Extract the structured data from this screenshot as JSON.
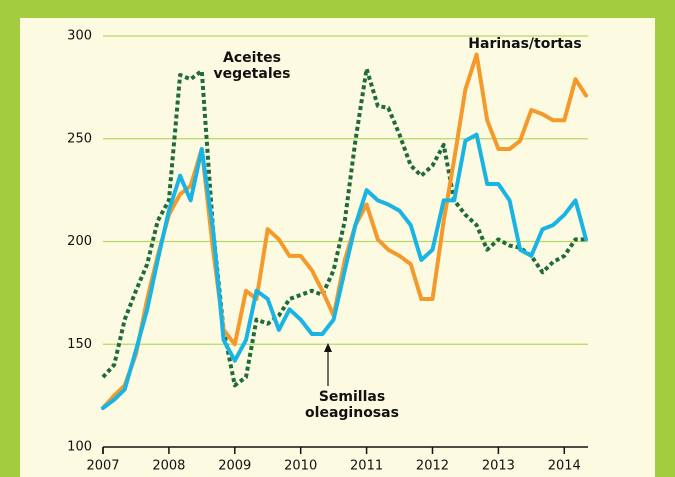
{
  "chart_data": {
    "type": "line",
    "x": [
      2007.0,
      2007.17,
      2007.33,
      2007.5,
      2007.67,
      2007.83,
      2008.0,
      2008.17,
      2008.33,
      2008.5,
      2008.67,
      2008.83,
      2009.0,
      2009.17,
      2009.33,
      2009.5,
      2009.67,
      2009.83,
      2010.0,
      2010.17,
      2010.33,
      2010.5,
      2010.67,
      2010.83,
      2011.0,
      2011.17,
      2011.33,
      2011.5,
      2011.67,
      2011.83,
      2012.0,
      2012.17,
      2012.33,
      2012.5,
      2012.67,
      2012.83,
      2013.0,
      2013.17,
      2013.33,
      2013.5,
      2013.67,
      2013.83,
      2014.0,
      2014.17,
      2014.33
    ],
    "series": [
      {
        "color": "#1f6b3b",
        "style": "dotted",
        "values": [
          134,
          140,
          162,
          176,
          189,
          210,
          220,
          281,
          279,
          283,
          206,
          157,
          130,
          134,
          162,
          160,
          164,
          172,
          174,
          176,
          174,
          186,
          210,
          249,
          284,
          266,
          265,
          252,
          237,
          232,
          237,
          247,
          220,
          213,
          208,
          196,
          201,
          198,
          197,
          193,
          185,
          190,
          193,
          201,
          201
        ]
      },
      {
        "color": "#f39a2b",
        "style": "solid",
        "values": [
          119,
          125,
          130,
          145,
          172,
          193,
          213,
          223,
          227,
          245,
          196,
          157,
          150,
          176,
          172,
          206,
          201,
          193,
          193,
          186,
          176,
          164,
          191,
          208,
          218,
          201,
          196,
          193,
          189,
          172,
          172,
          210,
          240,
          274,
          291,
          259,
          245,
          245,
          249,
          264,
          262,
          259,
          259,
          279,
          271
        ]
      },
      {
        "color": "#1ab4e4",
        "style": "solid",
        "values": [
          119,
          123,
          128,
          147,
          167,
          191,
          215,
          232,
          220,
          245,
          206,
          152,
          142,
          152,
          176,
          172,
          157,
          167,
          162,
          155,
          155,
          162,
          186,
          208,
          225,
          220,
          218,
          215,
          208,
          191,
          196,
          220,
          220,
          249,
          252,
          228,
          228,
          220,
          196,
          193,
          206,
          208,
          213,
          220,
          201
        ]
      }
    ],
    "annotations": [
      {
        "lines": [
          "Aceites",
          "vegetales"
        ]
      },
      {
        "lines": [
          "Harinas/tortas"
        ]
      },
      {
        "lines": [
          "Semillas",
          "oleaginosas"
        ]
      }
    ],
    "xlim": [
      2007,
      2014.36
    ],
    "xticks": [
      2007,
      2008,
      2009,
      2010,
      2011,
      2012,
      2013,
      2014
    ],
    "ylim": [
      100,
      300
    ],
    "yticks": [
      100,
      150,
      200,
      250,
      300
    ],
    "grid": true
  }
}
